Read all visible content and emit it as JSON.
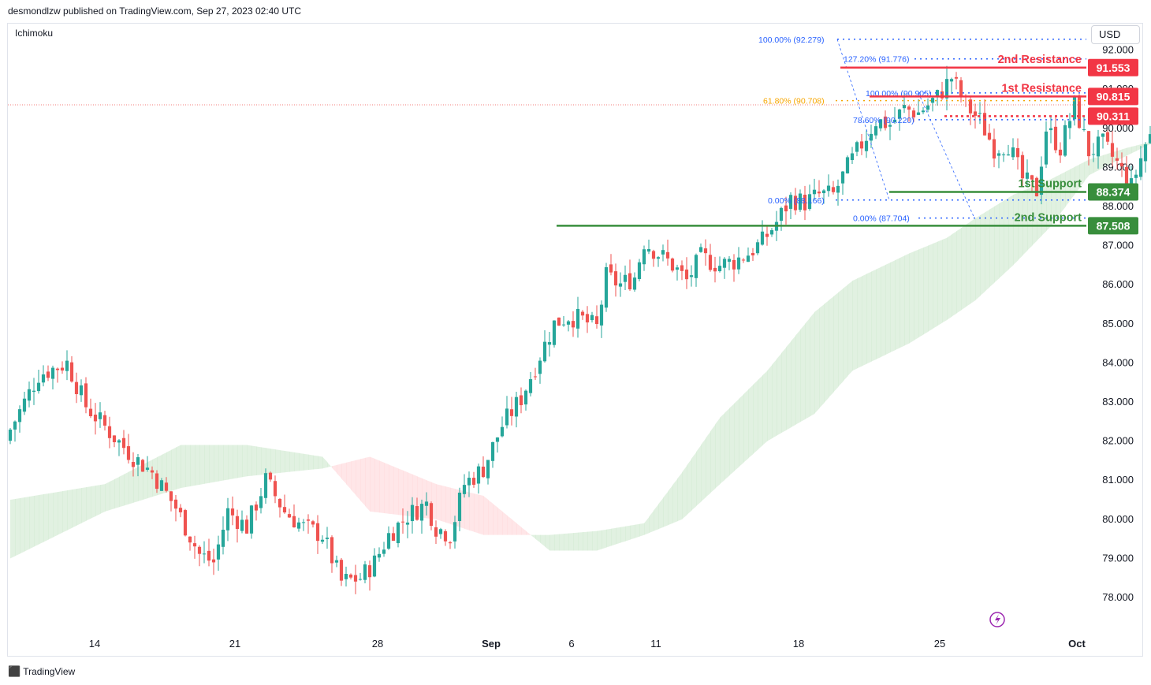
{
  "header": {
    "published_by": "desmondlzw published on TradingView.com, Sep 27, 2023 02:40 UTC"
  },
  "indicator": {
    "label": "Ichimoku"
  },
  "currency": {
    "label": "USD"
  },
  "footer": {
    "brand": "TradingView",
    "logo": "tradingview-logo-icon"
  },
  "colors": {
    "up": "#26a69a",
    "down": "#ef5350",
    "resistance": "#f23645",
    "support": "#388e3c",
    "cloud_bull": "#c8e6c9",
    "cloud_bear": "#ffcdd2",
    "fib_blue": "#2962ff",
    "fib_orange": "#f7a600",
    "text_muted": "#131722"
  },
  "chart_data": {
    "type": "candlestick",
    "instrument_currency": "USD",
    "ylim": [
      77.3,
      92.6
    ],
    "y_ticks": [
      "92.000",
      "91.000",
      "90.000",
      "89.000",
      "88.000",
      "87.000",
      "86.000",
      "85.000",
      "84.000",
      "83.000",
      "82.000",
      "81.000",
      "80.000",
      "79.000",
      "78.000"
    ],
    "x_ticks": [
      "14",
      "21",
      "28",
      "Sep",
      "6",
      "11",
      "18",
      "25",
      "Oct"
    ],
    "x_axis_note": "candles are 4-hour bars from about Aug 9 to Sep 27, 2023",
    "close_path": [
      [
        0,
        82.3
      ],
      [
        6,
        83.7
      ],
      [
        12,
        84.0
      ],
      [
        16,
        82.9
      ],
      [
        22,
        82.1
      ],
      [
        26,
        81.6
      ],
      [
        30,
        81.2
      ],
      [
        35,
        80.3
      ],
      [
        40,
        79.1
      ],
      [
        43,
        78.9
      ],
      [
        46,
        80.2
      ],
      [
        50,
        79.8
      ],
      [
        54,
        81.0
      ],
      [
        58,
        80.2
      ],
      [
        62,
        79.8
      ],
      [
        66,
        79.6
      ],
      [
        70,
        78.4
      ],
      [
        74,
        78.5
      ],
      [
        77,
        78.9
      ],
      [
        80,
        79.6
      ],
      [
        84,
        80.1
      ],
      [
        88,
        80.4
      ],
      [
        90,
        79.8
      ],
      [
        93,
        79.6
      ],
      [
        96,
        80.9
      ],
      [
        100,
        81.3
      ],
      [
        104,
        82.4
      ],
      [
        108,
        83.1
      ],
      [
        112,
        84.2
      ],
      [
        115,
        85.0
      ],
      [
        118,
        85.2
      ],
      [
        121,
        85.1
      ],
      [
        124,
        84.9
      ],
      [
        126,
        86.2
      ],
      [
        129,
        86.0
      ],
      [
        132,
        86.2
      ],
      [
        134,
        87.1
      ],
      [
        137,
        86.8
      ],
      [
        140,
        86.5
      ],
      [
        143,
        86.1
      ],
      [
        146,
        86.7
      ],
      [
        150,
        86.5
      ],
      [
        153,
        86.6
      ],
      [
        156,
        86.8
      ],
      [
        159,
        87.1
      ],
      [
        162,
        87.6
      ],
      [
        165,
        88.2
      ],
      [
        168,
        88.1
      ],
      [
        171,
        88.3
      ],
      [
        174,
        88.3
      ],
      [
        177,
        89.0
      ],
      [
        180,
        89.6
      ],
      [
        183,
        90.2
      ],
      [
        186,
        90.1
      ],
      [
        189,
        90.5
      ],
      [
        192,
        90.4
      ],
      [
        196,
        90.8
      ],
      [
        199,
        91.3
      ],
      [
        202,
        90.6
      ],
      [
        205,
        90.2
      ],
      [
        208,
        89.5
      ],
      [
        211,
        89.6
      ],
      [
        214,
        88.7
      ],
      [
        217,
        88.4
      ],
      [
        219,
        90.0
      ],
      [
        222,
        89.5
      ],
      [
        225,
        90.6
      ],
      [
        228,
        89.4
      ],
      [
        231,
        89.6
      ],
      [
        234,
        89.1
      ],
      [
        237,
        88.5
      ],
      [
        240,
        89.6
      ],
      [
        243,
        90.2
      ],
      [
        245,
        90.3
      ]
    ],
    "ichimoku_cloud": {
      "span_a_path": [
        [
          0,
          80.5
        ],
        [
          20,
          80.9
        ],
        [
          36,
          81.9
        ],
        [
          50,
          81.9
        ],
        [
          66,
          81.6
        ],
        [
          76,
          80.2
        ],
        [
          90,
          80.0
        ],
        [
          100,
          79.6
        ],
        [
          114,
          79.6
        ],
        [
          124,
          79.7
        ],
        [
          134,
          79.9
        ],
        [
          142,
          81.2
        ],
        [
          150,
          82.6
        ],
        [
          160,
          83.8
        ],
        [
          170,
          85.3
        ],
        [
          178,
          86.1
        ],
        [
          190,
          86.8
        ],
        [
          198,
          87.2
        ],
        [
          204,
          87.7
        ],
        [
          212,
          88.3
        ],
        [
          220,
          88.7
        ],
        [
          228,
          89.2
        ],
        [
          236,
          89.5
        ],
        [
          246,
          89.8
        ],
        [
          258,
          89.9
        ]
      ],
      "span_b_path": [
        [
          0,
          79.0
        ],
        [
          20,
          80.2
        ],
        [
          36,
          80.8
        ],
        [
          50,
          81.1
        ],
        [
          66,
          81.3
        ],
        [
          76,
          81.6
        ],
        [
          90,
          80.9
        ],
        [
          100,
          80.6
        ],
        [
          114,
          79.2
        ],
        [
          124,
          79.2
        ],
        [
          134,
          79.6
        ],
        [
          142,
          80.0
        ],
        [
          150,
          80.9
        ],
        [
          160,
          82.0
        ],
        [
          170,
          82.7
        ],
        [
          178,
          83.8
        ],
        [
          190,
          84.5
        ],
        [
          198,
          85.1
        ],
        [
          204,
          85.6
        ],
        [
          212,
          86.5
        ],
        [
          220,
          87.5
        ],
        [
          228,
          88.8
        ],
        [
          236,
          89.3
        ],
        [
          246,
          89.9
        ],
        [
          258,
          89.8
        ]
      ]
    },
    "levels": [
      {
        "name": "2nd Resistance",
        "value": 91.553,
        "color": "#f23645"
      },
      {
        "name": "1st Resistance",
        "value": 90.815,
        "color": "#f23645"
      },
      {
        "name": "",
        "value": 90.311,
        "color": "#f23645"
      },
      {
        "name": "1st Support",
        "value": 88.374,
        "color": "#388e3c"
      },
      {
        "name": "2nd Support",
        "value": 87.508,
        "color": "#388e3c"
      }
    ],
    "price_labels": [
      "91.553",
      "90.815",
      "90.311",
      "88.374",
      "87.508"
    ],
    "fib_labels": [
      {
        "text": "100.00% (92.279)",
        "value": 92.279
      },
      {
        "text": "127.20% (91.776)",
        "value": 91.776
      },
      {
        "text": "100.00% (90.905)",
        "value": 90.905
      },
      {
        "text": "61.80% (90.708)",
        "value": 90.708
      },
      {
        "text": "78.60% (90.220)",
        "value": 90.22
      },
      {
        "text": "0.00% (88.166)",
        "value": 88.166
      },
      {
        "text": "0.00% (87.704)",
        "value": 87.704
      }
    ]
  }
}
